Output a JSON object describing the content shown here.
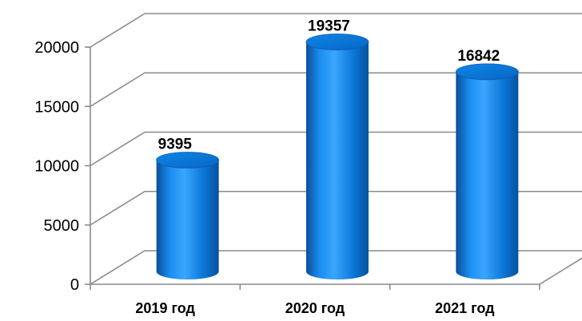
{
  "chart_data": {
    "type": "bar",
    "categories": [
      "2019 год",
      "2020 год",
      "2021 год"
    ],
    "values": [
      9395,
      19357,
      16842
    ],
    "data_labels": [
      "9395",
      "19357",
      "16842"
    ],
    "yticks": [
      "0",
      "5000",
      "10000",
      "15000",
      "20000"
    ],
    "ylim": [
      0,
      20000
    ],
    "grid": true,
    "legend": "none",
    "style": "3d-cylinder",
    "bar_color": "#0a7bd6"
  }
}
